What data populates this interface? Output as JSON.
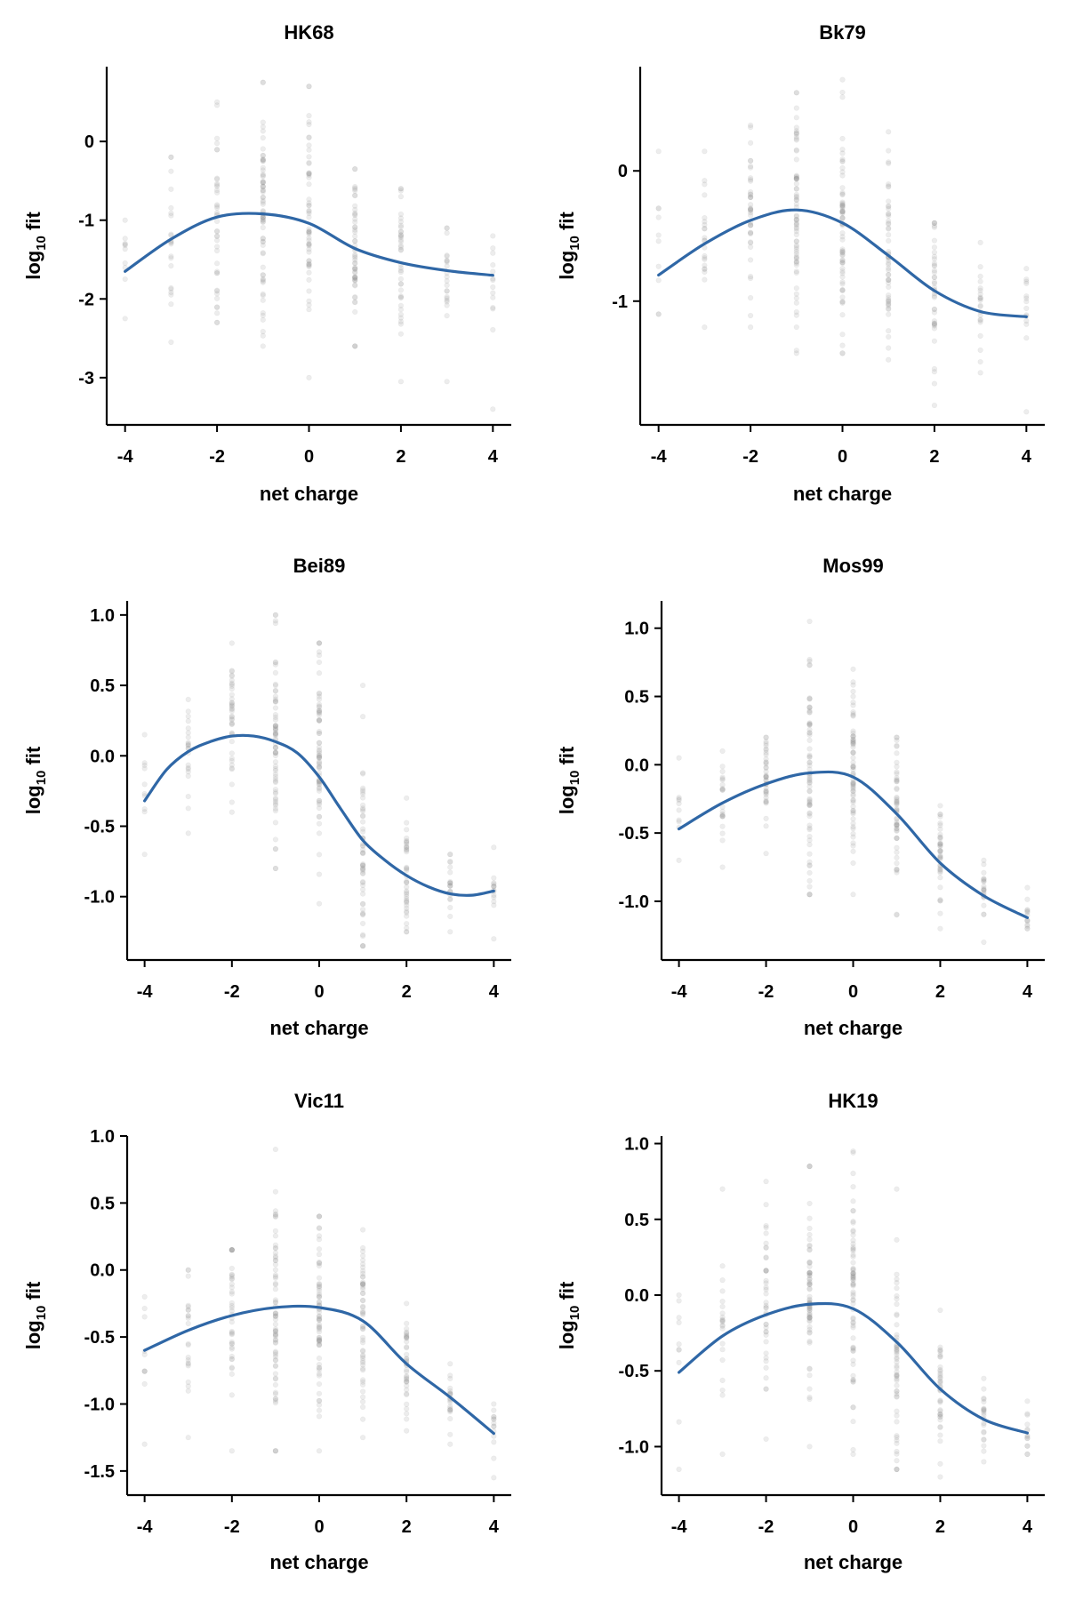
{
  "colors": {
    "fit_line": "#2f67a6",
    "points": "#8c8c8c",
    "axis": "#000000"
  },
  "chart_data": [
    {
      "type": "scatter",
      "title": "HK68",
      "xlabel": "net charge",
      "ylabel_main": "log",
      "ylabel_sub": "10",
      "ylabel_tail": " fit",
      "xlim": [
        -4.4,
        4.4
      ],
      "ylim": [
        -3.6,
        0.95
      ],
      "xticks": [
        -4,
        -2,
        0,
        2,
        4
      ],
      "yticks": [
        -3,
        -2,
        -1,
        0
      ],
      "xtick_labels": [
        "-4",
        "-2",
        "0",
        "2",
        "4"
      ],
      "ytick_labels": [
        "-3",
        "-2",
        "-1",
        "0"
      ],
      "points_per_group": [
        10,
        22,
        40,
        70,
        55,
        55,
        40,
        22,
        14
      ],
      "point_ranges": [
        [
          -2.25,
          -1.0
        ],
        [
          -2.55,
          -0.2
        ],
        [
          -2.3,
          0.5
        ],
        [
          -2.6,
          0.75
        ],
        [
          -3.0,
          0.7
        ],
        [
          -2.6,
          -0.35
        ],
        [
          -3.05,
          -0.6
        ],
        [
          -3.05,
          -1.1
        ],
        [
          -3.4,
          -1.2
        ]
      ],
      "point_centers": [
        -1.55,
        -1.2,
        -1.0,
        -0.95,
        -1.05,
        -1.4,
        -1.55,
        -1.65,
        -1.7
      ],
      "series": [
        {
          "name": "",
          "x": [
            -4,
            -3,
            -2,
            -1,
            0,
            1,
            2,
            3,
            4
          ],
          "y": [
            -1.65,
            -1.24,
            -0.96,
            -0.92,
            -1.04,
            -1.36,
            -1.54,
            -1.64,
            -1.7
          ]
        }
      ]
    },
    {
      "type": "scatter",
      "title": "Bk79",
      "xlabel": "net charge",
      "ylabel_main": "log",
      "ylabel_sub": "10",
      "ylabel_tail": " fit",
      "xlim": [
        -4.4,
        4.4
      ],
      "ylim": [
        -1.95,
        0.8
      ],
      "xticks": [
        -4,
        -2,
        0,
        2,
        4
      ],
      "yticks": [
        -1,
        0
      ],
      "xtick_labels": [
        "-4",
        "-2",
        "0",
        "2",
        "4"
      ],
      "ytick_labels": [
        "-1",
        "0"
      ],
      "points_per_group": [
        10,
        22,
        40,
        70,
        70,
        55,
        40,
        22,
        14
      ],
      "point_ranges": [
        [
          -1.1,
          0.15
        ],
        [
          -1.2,
          0.15
        ],
        [
          -1.2,
          0.35
        ],
        [
          -1.4,
          0.6
        ],
        [
          -1.4,
          0.7
        ],
        [
          -1.45,
          0.3
        ],
        [
          -1.8,
          -0.4
        ],
        [
          -1.55,
          -0.55
        ],
        [
          -1.85,
          -0.75
        ]
      ],
      "point_centers": [
        -0.8,
        -0.55,
        -0.35,
        -0.3,
        -0.4,
        -0.6,
        -0.9,
        -1.05,
        -1.1
      ],
      "series": [
        {
          "name": "",
          "x": [
            -4,
            -3,
            -2,
            -1,
            0,
            1,
            2,
            3,
            4
          ],
          "y": [
            -0.8,
            -0.56,
            -0.38,
            -0.3,
            -0.4,
            -0.65,
            -0.92,
            -1.08,
            -1.12
          ]
        }
      ]
    },
    {
      "type": "scatter",
      "title": "Bei89",
      "xlabel": "net charge",
      "ylabel_main": "log",
      "ylabel_sub": "10",
      "ylabel_tail": " fit",
      "xlim": [
        -4.4,
        4.4
      ],
      "ylim": [
        -1.45,
        1.1
      ],
      "xticks": [
        -4,
        -2,
        0,
        2,
        4
      ],
      "yticks": [
        -1.0,
        -0.5,
        0.0,
        0.5,
        1.0
      ],
      "xtick_labels": [
        "-4",
        "-2",
        "0",
        "2",
        "4"
      ],
      "ytick_labels": [
        "-1.0",
        "-0.5",
        "0.0",
        "0.5",
        "1.0"
      ],
      "points_per_group": [
        10,
        22,
        40,
        70,
        70,
        55,
        40,
        22,
        14
      ],
      "point_ranges": [
        [
          -0.7,
          0.15
        ],
        [
          -0.55,
          0.4
        ],
        [
          -0.4,
          0.8
        ],
        [
          -0.8,
          1.0
        ],
        [
          -1.05,
          0.8
        ],
        [
          -1.35,
          0.5
        ],
        [
          -1.25,
          -0.3
        ],
        [
          -1.25,
          -0.7
        ],
        [
          -1.3,
          -0.65
        ]
      ],
      "point_centers": [
        -0.25,
        0.0,
        0.2,
        0.15,
        0.0,
        -0.65,
        -0.85,
        -0.95,
        -0.95
      ],
      "series": [
        {
          "name": "",
          "x": [
            -4,
            -3.5,
            -3,
            -2.5,
            -2,
            -1.5,
            -1,
            -0.5,
            0,
            0.5,
            1,
            1.5,
            2,
            2.5,
            3,
            3.5,
            4
          ],
          "y": [
            -0.32,
            -0.1,
            0.03,
            0.1,
            0.14,
            0.14,
            0.1,
            0.02,
            -0.15,
            -0.38,
            -0.6,
            -0.74,
            -0.85,
            -0.93,
            -0.98,
            -0.99,
            -0.96
          ]
        }
      ]
    },
    {
      "type": "scatter",
      "title": "Mos99",
      "xlabel": "net charge",
      "ylabel_main": "log",
      "ylabel_sub": "10",
      "ylabel_tail": " fit",
      "xlim": [
        -4.4,
        4.4
      ],
      "ylim": [
        -1.43,
        1.2
      ],
      "xticks": [
        -4,
        -2,
        0,
        2,
        4
      ],
      "yticks": [
        -1.0,
        -0.5,
        0.0,
        0.5,
        1.0
      ],
      "xtick_labels": [
        "-4",
        "-2",
        "0",
        "2",
        "4"
      ],
      "ytick_labels": [
        "-1.0",
        "-0.5",
        "0.0",
        "0.5",
        "1.0"
      ],
      "points_per_group": [
        10,
        22,
        40,
        70,
        70,
        55,
        40,
        22,
        14
      ],
      "point_ranges": [
        [
          -0.7,
          0.05
        ],
        [
          -0.75,
          0.1
        ],
        [
          -0.65,
          0.2
        ],
        [
          -0.95,
          1.05
        ],
        [
          -0.95,
          0.7
        ],
        [
          -1.1,
          0.2
        ],
        [
          -1.2,
          -0.3
        ],
        [
          -1.3,
          -0.7
        ],
        [
          -1.2,
          -0.9
        ]
      ],
      "point_centers": [
        -0.45,
        -0.25,
        -0.1,
        -0.05,
        -0.05,
        -0.35,
        -0.7,
        -0.95,
        -1.1
      ],
      "series": [
        {
          "name": "",
          "x": [
            -4,
            -3,
            -2,
            -1,
            0,
            1,
            2,
            3,
            4
          ],
          "y": [
            -0.47,
            -0.28,
            -0.14,
            -0.06,
            -0.09,
            -0.36,
            -0.72,
            -0.96,
            -1.12
          ]
        }
      ]
    },
    {
      "type": "scatter",
      "title": "Vic11",
      "xlabel": "net charge",
      "ylabel_main": "log",
      "ylabel_sub": "10",
      "ylabel_tail": " fit",
      "xlim": [
        -4.4,
        4.4
      ],
      "ylim": [
        -1.68,
        1.0
      ],
      "xticks": [
        -4,
        -2,
        0,
        2,
        4
      ],
      "yticks": [
        -1.5,
        -1.0,
        -0.5,
        0.0,
        0.5,
        1.0
      ],
      "xtick_labels": [
        "-4",
        "-2",
        "0",
        "2",
        "4"
      ],
      "ytick_labels": [
        "-1.5",
        "-1.0",
        "-0.5",
        "0.0",
        "0.5",
        "1.0"
      ],
      "points_per_group": [
        10,
        22,
        40,
        70,
        70,
        55,
        40,
        22,
        14
      ],
      "point_ranges": [
        [
          -1.3,
          -0.2
        ],
        [
          -1.25,
          0.0
        ],
        [
          -1.35,
          0.15
        ],
        [
          -1.35,
          0.9
        ],
        [
          -1.35,
          0.4
        ],
        [
          -1.25,
          0.3
        ],
        [
          -1.2,
          -0.25
        ],
        [
          -1.3,
          -0.7
        ],
        [
          -1.55,
          -1.0
        ]
      ],
      "point_centers": [
        -0.6,
        -0.45,
        -0.35,
        -0.3,
        -0.3,
        -0.4,
        -0.7,
        -0.95,
        -1.2
      ],
      "series": [
        {
          "name": "",
          "x": [
            -4,
            -3,
            -2,
            -1,
            0,
            1,
            2,
            3,
            4
          ],
          "y": [
            -0.6,
            -0.45,
            -0.34,
            -0.28,
            -0.28,
            -0.38,
            -0.7,
            -0.95,
            -1.22
          ]
        }
      ]
    },
    {
      "type": "scatter",
      "title": "HK19",
      "xlabel": "net charge",
      "ylabel_main": "log",
      "ylabel_sub": "10",
      "ylabel_tail": " fit",
      "xlim": [
        -4.4,
        4.4
      ],
      "ylim": [
        -1.32,
        1.05
      ],
      "xticks": [
        -4,
        -2,
        0,
        2,
        4
      ],
      "yticks": [
        -1.0,
        -0.5,
        0.0,
        0.5,
        1.0
      ],
      "xtick_labels": [
        "-4",
        "-2",
        "0",
        "2",
        "4"
      ],
      "ytick_labels": [
        "-1.0",
        "-0.5",
        "0.0",
        "0.5",
        "1.0"
      ],
      "points_per_group": [
        10,
        22,
        40,
        70,
        70,
        55,
        40,
        22,
        14
      ],
      "point_ranges": [
        [
          -1.15,
          0.0
        ],
        [
          -1.05,
          0.7
        ],
        [
          -0.95,
          0.75
        ],
        [
          -1.0,
          0.85
        ],
        [
          -1.05,
          0.95
        ],
        [
          -1.15,
          0.7
        ],
        [
          -1.2,
          -0.1
        ],
        [
          -1.1,
          -0.55
        ],
        [
          -1.05,
          -0.7
        ]
      ],
      "point_centers": [
        -0.45,
        -0.3,
        -0.1,
        0.0,
        -0.05,
        -0.35,
        -0.65,
        -0.8,
        -0.9
      ],
      "series": [
        {
          "name": "",
          "x": [
            -4,
            -3,
            -2,
            -1,
            0,
            1,
            2,
            3,
            4
          ],
          "y": [
            -0.51,
            -0.27,
            -0.13,
            -0.06,
            -0.09,
            -0.31,
            -0.62,
            -0.82,
            -0.91
          ]
        }
      ]
    }
  ]
}
